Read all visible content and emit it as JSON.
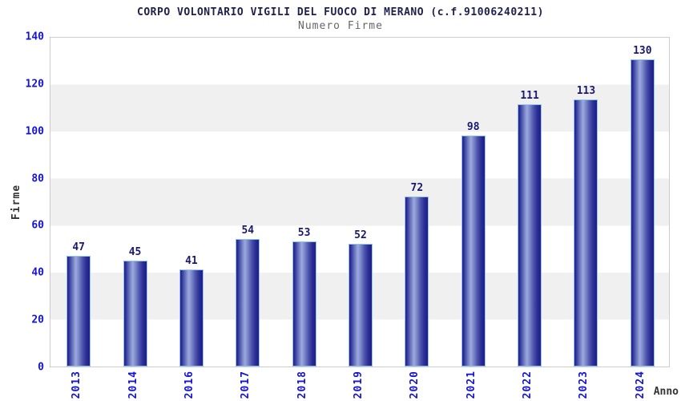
{
  "header": {
    "title": "CORPO VOLONTARIO VIGILI DEL FUOCO DI MERANO (c.f.91006240211)",
    "subtitle": "Numero Firme"
  },
  "colors": {
    "bar_dark": "#23238e",
    "bar_light": "#9da9de",
    "bar_border": "#8fc3ee",
    "tick_blue": "#1515cf",
    "value_label": "#191970",
    "title": "#1f1f4e",
    "subtitle": "#666666",
    "band_gray": "#f0f0f0",
    "plot_border": "#cccccc",
    "axis_label": "#333333"
  },
  "chart_data": {
    "type": "bar",
    "title": "CORPO VOLONTARIO VIGILI DEL FUOCO DI MERANO (c.f.91006240211)",
    "subtitle": "Numero Firme",
    "categories": [
      "2013",
      "2014",
      "2016",
      "2017",
      "2018",
      "2019",
      "2020",
      "2021",
      "2022",
      "2023",
      "2024"
    ],
    "values": [
      47,
      45,
      41,
      54,
      53,
      52,
      72,
      98,
      111,
      113,
      130
    ],
    "xlabel": "Anno",
    "ylabel": "Firme",
    "ylim": [
      0,
      140
    ],
    "yticks": [
      0,
      20,
      40,
      60,
      80,
      100,
      120,
      140
    ],
    "grid": "alternating-horizontal-bands",
    "legend": "none",
    "bar_style": "cylinder-gradient-blue",
    "value_labels_shown": true
  }
}
